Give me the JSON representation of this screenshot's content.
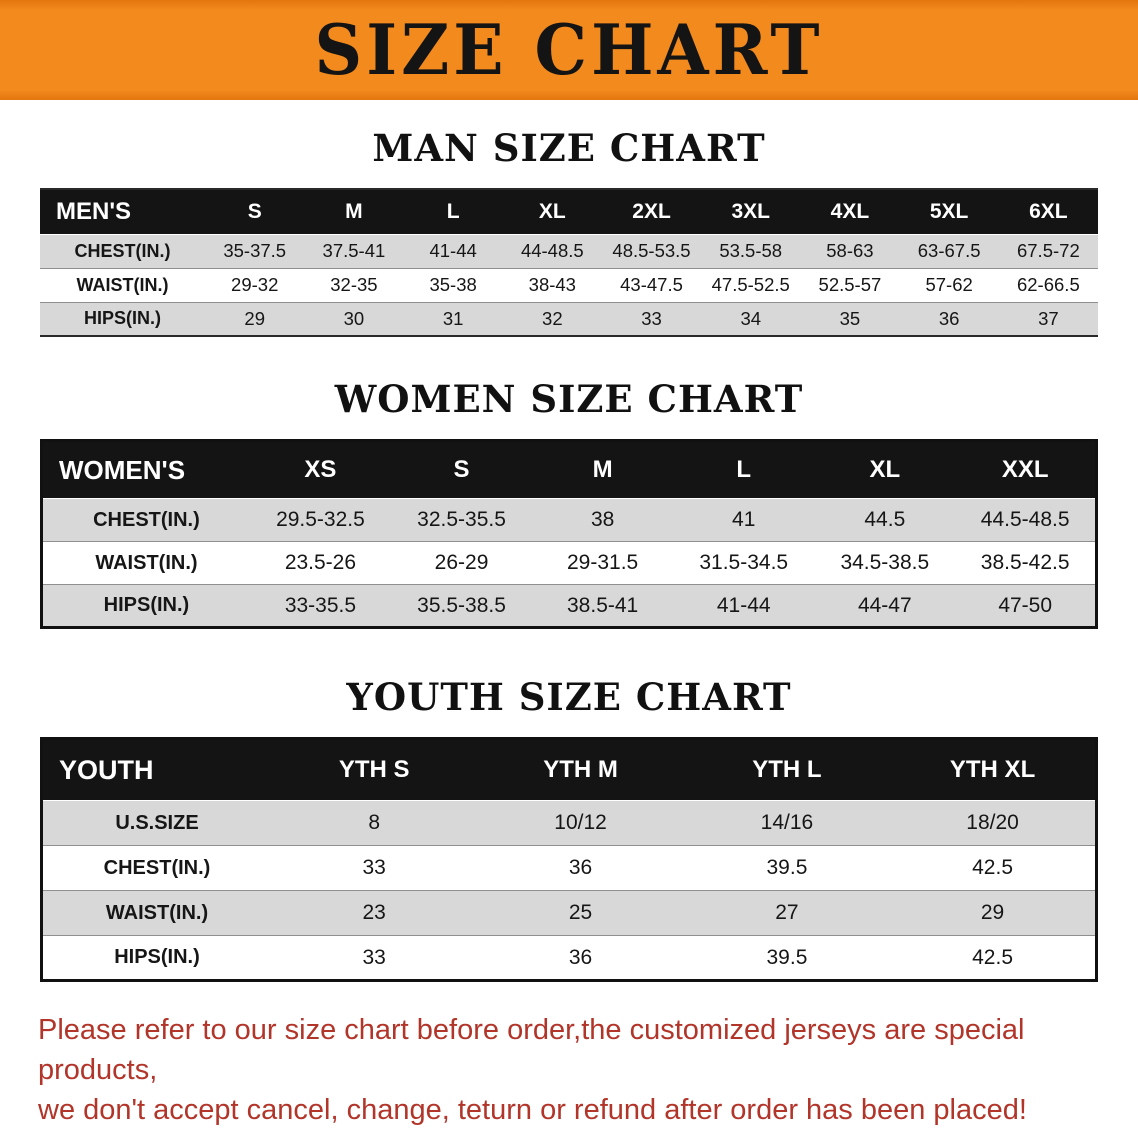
{
  "banner": {
    "title": "SIZE CHART"
  },
  "colors": {
    "banner_bg": "#f28a1e",
    "table_header_bg": "#141414",
    "row_alt_bg": "#d8d8d8",
    "footer_text": "#b2352a"
  },
  "men": {
    "heading": "MAN SIZE CHART",
    "table": {
      "label": "MEN'S",
      "columns": [
        "S",
        "M",
        "L",
        "XL",
        "2XL",
        "3XL",
        "4XL",
        "5XL",
        "6XL"
      ],
      "rows": [
        {
          "label": "CHEST(IN.)",
          "values": [
            "35-37.5",
            "37.5-41",
            "41-44",
            "44-48.5",
            "48.5-53.5",
            "53.5-58",
            "58-63",
            "63-67.5",
            "67.5-72"
          ]
        },
        {
          "label": "WAIST(IN.)",
          "values": [
            "29-32",
            "32-35",
            "35-38",
            "38-43",
            "43-47.5",
            "47.5-52.5",
            "52.5-57",
            "57-62",
            "62-66.5"
          ]
        },
        {
          "label": "HIPS(IN.)",
          "values": [
            "29",
            "30",
            "31",
            "32",
            "33",
            "34",
            "35",
            "36",
            "37"
          ]
        }
      ]
    }
  },
  "women": {
    "heading": "WOMEN SIZE CHART",
    "table": {
      "label": "WOMEN'S",
      "columns": [
        "XS",
        "S",
        "M",
        "L",
        "XL",
        "XXL"
      ],
      "rows": [
        {
          "label": "CHEST(IN.)",
          "values": [
            "29.5-32.5",
            "32.5-35.5",
            "38",
            "41",
            "44.5",
            "44.5-48.5"
          ]
        },
        {
          "label": "WAIST(IN.)",
          "values": [
            "23.5-26",
            "26-29",
            "29-31.5",
            "31.5-34.5",
            "34.5-38.5",
            "38.5-42.5"
          ]
        },
        {
          "label": "HIPS(IN.)",
          "values": [
            "33-35.5",
            "35.5-38.5",
            "38.5-41",
            "41-44",
            "44-47",
            "47-50"
          ]
        }
      ]
    }
  },
  "youth": {
    "heading": "YOUTH SIZE CHART",
    "table": {
      "label": "YOUTH",
      "columns": [
        "YTH S",
        "YTH M",
        "YTH L",
        "YTH XL"
      ],
      "rows": [
        {
          "label": "U.S.SIZE",
          "values": [
            "8",
            "10/12",
            "14/16",
            "18/20"
          ]
        },
        {
          "label": "CHEST(IN.)",
          "values": [
            "33",
            "36",
            "39.5",
            "42.5"
          ]
        },
        {
          "label": "WAIST(IN.)",
          "values": [
            "23",
            "25",
            "27",
            "29"
          ]
        },
        {
          "label": "HIPS(IN.)",
          "values": [
            "33",
            "36",
            "39.5",
            "42.5"
          ]
        }
      ]
    }
  },
  "footer": {
    "line1": "Please refer to our size chart before order,the customized jerseys are special products,",
    "line2": "we don't accept cancel, change, teturn or refund after order has been placed!"
  }
}
